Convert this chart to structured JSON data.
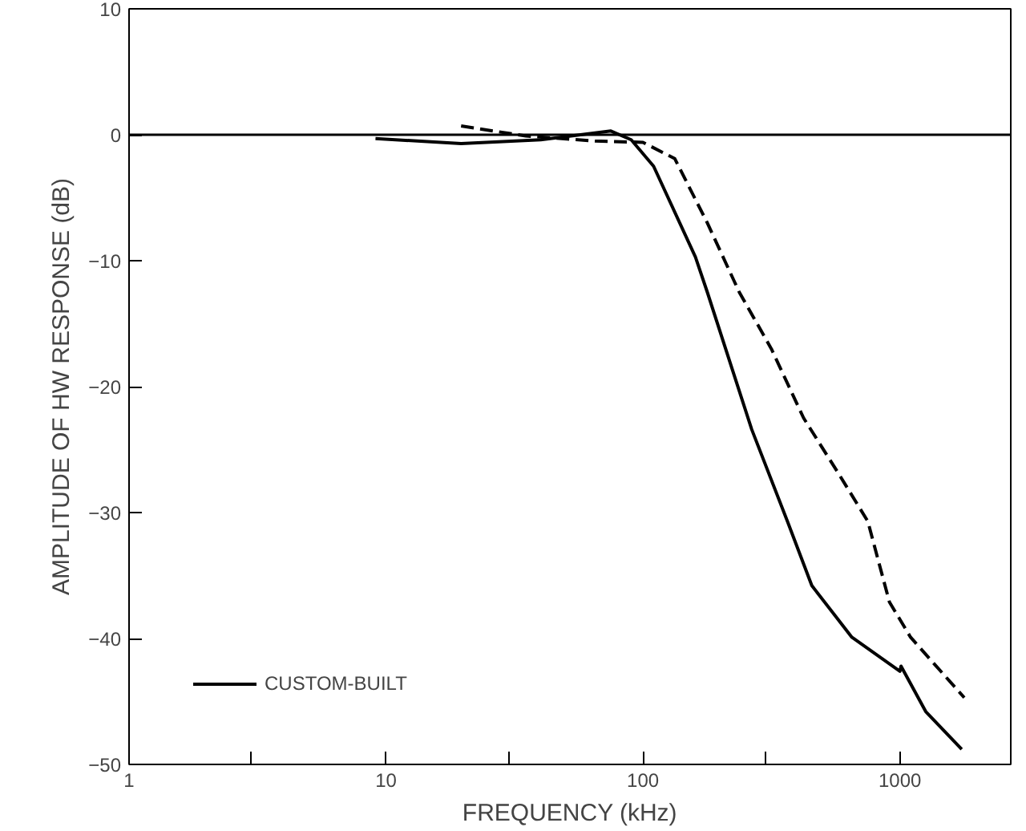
{
  "chart_data": {
    "type": "line",
    "xlabel": "FREQUENCY (kHz)",
    "ylabel": "AMPLITUDE OF HW RESPONSE (dB)",
    "log": "x",
    "xlim": [
      1,
      2700
    ],
    "ylim": [
      -50,
      10
    ],
    "xticks": [
      1,
      {
        "value": 3,
        "label": null
      },
      10,
      {
        "value": 30,
        "label": null
      },
      100,
      {
        "value": 300,
        "label": null
      },
      1000
    ],
    "yticks": [
      -50,
      -40,
      -30,
      -20,
      -10,
      0,
      10
    ],
    "grid": false,
    "legend": "bottom left",
    "marker": "none",
    "ref_lines": [
      {
        "axis": "y",
        "value": 0,
        "color": "#000000",
        "line_style": "solid"
      }
    ],
    "series": [
      {
        "name": "CUSTOM-BUILT",
        "color": "#000000",
        "line_style": "solid",
        "x": [
          9.1,
          19.6,
          40,
          75,
          90,
          110,
          160,
          178,
          265,
          365,
          454,
          650,
          1000,
          1010,
          1260,
          1740
        ],
        "values": [
          -0.3,
          -0.7,
          -0.4,
          0.3,
          -0.4,
          -2.5,
          -9.7,
          -12.5,
          -23.4,
          -30.7,
          -35.8,
          -39.9,
          -42.6,
          -42.2,
          -45.8,
          -48.8
        ]
      },
      {
        "color": "#000000",
        "line_style": "dashed",
        "x": [
          19.6,
          35,
          65,
          100,
          133,
          178,
          237,
          316,
          422,
          585,
          750,
          910,
          1100,
          1780
        ],
        "values": [
          0.7,
          -0.1,
          -0.5,
          -0.6,
          -1.9,
          -7.0,
          -12.5,
          -17,
          -22.5,
          -27.1,
          -30.7,
          -37.1,
          -39.9,
          -44.7
        ]
      }
    ]
  }
}
